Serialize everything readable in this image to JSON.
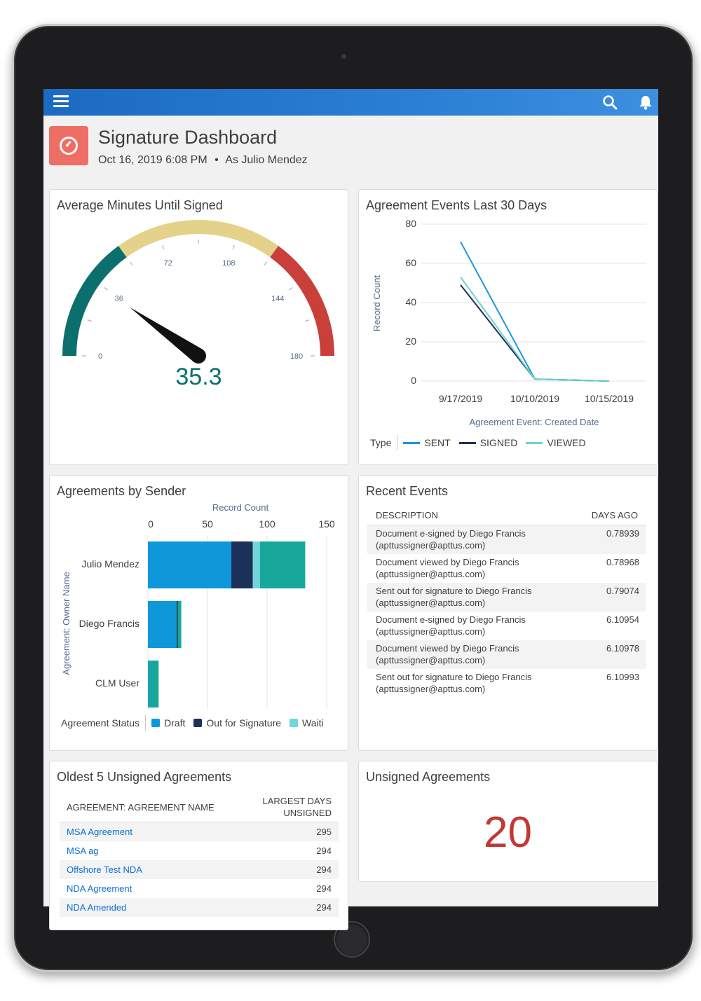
{
  "header": {
    "title": "Signature Dashboard",
    "date": "Oct 16, 2019 6:08 PM",
    "separator": "•",
    "run_as": "As Julio Mendez"
  },
  "colors": {
    "nav_bar": "#2a7fd4",
    "header_icon": "#ef6e64",
    "gauge_teal": "#0b6f6d",
    "gauge_yellow": "#e5d28a",
    "gauge_red": "#c9403b",
    "sent": "#1b96e0",
    "signed": "#1f3157",
    "viewed": "#6fd3d6",
    "draft": "#0f98d9",
    "out_for_signature": "#1c3159",
    "waiting": "#74d4dd",
    "other_status": "#17a79a",
    "unsigned_count": "#c23934"
  },
  "gauge_card": {
    "title": "Average Minutes Until Signed",
    "value": "35.3",
    "value_num": 35.3,
    "min": 0,
    "max": 180,
    "ticks": [
      "0",
      "36",
      "72",
      "108",
      "144",
      "180"
    ]
  },
  "line_card": {
    "title": "Agreement Events Last 30 Days",
    "ylabel": "Record Count",
    "xlabel": "Agreement Event: Created Date",
    "legend_title": "Type",
    "y_ticks": [
      "80",
      "60",
      "40",
      "20",
      "0"
    ]
  },
  "bar_card": {
    "title": "Agreements by Sender",
    "xlabel": "Record Count",
    "ylabel": "Agreement: Owner Name",
    "legend_title": "Agreement Status",
    "x_ticks": [
      "0",
      "50",
      "100",
      "150"
    ],
    "legend": [
      "Draft",
      "Out for Signature",
      "Waiti"
    ]
  },
  "chart_data": [
    {
      "type": "line",
      "title": "Agreement Events Last 30 Days",
      "xlabel": "Agreement Event: Created Date",
      "ylabel": "Record Count",
      "x": [
        "9/17/2019",
        "10/10/2019",
        "10/15/2019"
      ],
      "ylim": [
        0,
        80
      ],
      "grid": true,
      "legend_placement": "bottom",
      "series": [
        {
          "name": "SENT",
          "values": [
            71,
            1,
            0
          ]
        },
        {
          "name": "SIGNED",
          "values": [
            49,
            1,
            0
          ]
        },
        {
          "name": "VIEWED",
          "values": [
            53,
            1,
            0
          ]
        }
      ]
    },
    {
      "type": "bar",
      "orientation": "horizontal",
      "stacked": true,
      "title": "Agreements by Sender",
      "xlabel": "Record Count",
      "ylabel": "Agreement: Owner Name",
      "categories": [
        "Julio Mendez",
        "Diego Francis",
        "CLM User"
      ],
      "xlim": [
        0,
        150
      ],
      "legend_placement": "bottom",
      "series": [
        {
          "name": "Draft",
          "values": [
            70,
            24,
            1
          ]
        },
        {
          "name": "Out for Signature",
          "values": [
            18,
            1,
            0
          ]
        },
        {
          "name": "Waiti",
          "values": [
            6,
            0,
            0
          ]
        },
        {
          "values": [
            38,
            3,
            8
          ]
        }
      ]
    }
  ],
  "events_card": {
    "title": "Recent Events",
    "col_description": "DESCRIPTION",
    "col_days": "DAYS AGO",
    "rows": [
      {
        "line1": "Document e-signed by Diego Francis",
        "line2": "(apttussigner@apttus.com)",
        "days": "0.78939"
      },
      {
        "line1": "Document viewed by Diego Francis",
        "line2": "(apttussigner@apttus.com)",
        "days": "0.78968"
      },
      {
        "line1": "Sent out for signature to Diego Francis",
        "line2": "(apttussigner@apttus.com)",
        "days": "0.79074"
      },
      {
        "line1": "Document e-signed by Diego Francis",
        "line2": "(apttussigner@apttus.com)",
        "days": "6.10954"
      },
      {
        "line1": "Document viewed by Diego Francis",
        "line2": "(apttussigner@apttus.com)",
        "days": "6.10978"
      },
      {
        "line1": "Sent out for signature to Diego Francis",
        "line2": "(apttussigner@apttus.com)",
        "days": "6.10993"
      }
    ]
  },
  "oldest_card": {
    "title": "Oldest 5 Unsigned Agreements",
    "col_name": "AGREEMENT: AGREEMENT NAME",
    "col_days_1": "LARGEST DAYS",
    "col_days_2": "UNSIGNED",
    "rows": [
      {
        "name": "MSA Agreement",
        "days": "295"
      },
      {
        "name": "MSA ag",
        "days": "294"
      },
      {
        "name": "Offshore Test NDA",
        "days": "294"
      },
      {
        "name": "NDA Agreement",
        "days": "294"
      },
      {
        "name": "NDA Amended",
        "days": "294"
      }
    ]
  },
  "unsigned_card": {
    "title": "Unsigned Agreements",
    "value": "20"
  },
  "icons": [
    "menu-icon",
    "search-icon",
    "bell-icon",
    "dashboard-icon"
  ]
}
